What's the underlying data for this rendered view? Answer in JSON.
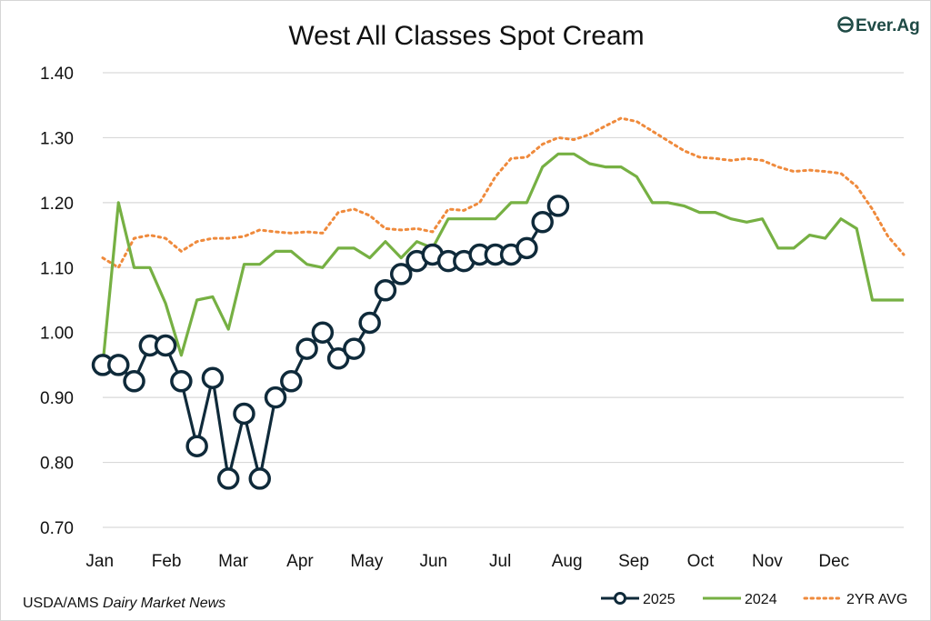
{
  "chart_data": {
    "type": "line",
    "title": "West All Classes Spot Cream",
    "ylim": [
      0.7,
      1.4
    ],
    "yticks": [
      "0.70",
      "0.80",
      "0.90",
      "1.00",
      "1.10",
      "1.20",
      "1.30",
      "1.40"
    ],
    "months": [
      "Jan",
      "Feb",
      "Mar",
      "Apr",
      "May",
      "Jun",
      "Jul",
      "Aug",
      "Sep",
      "Oct",
      "Nov",
      "Dec"
    ],
    "grid": true,
    "legend_position": "bottom-right",
    "series": [
      {
        "name": "2025",
        "color": "#0f2a3a",
        "style": "line-markers",
        "values": [
          0.95,
          0.95,
          0.925,
          0.98,
          0.98,
          0.925,
          0.825,
          0.93,
          0.775,
          0.875,
          0.775,
          0.9,
          0.925,
          0.975,
          1.0,
          0.96,
          0.975,
          1.015,
          1.065,
          1.09,
          1.11,
          1.12,
          1.11,
          1.11,
          1.12,
          1.12,
          1.12,
          1.13,
          1.17,
          1.195
        ]
      },
      {
        "name": "2024",
        "color": "#76b043",
        "style": "solid",
        "values": [
          0.95,
          1.2,
          1.1,
          1.1,
          1.045,
          0.965,
          1.05,
          1.055,
          1.005,
          1.105,
          1.105,
          1.125,
          1.125,
          1.105,
          1.1,
          1.13,
          1.13,
          1.115,
          1.14,
          1.115,
          1.14,
          1.13,
          1.175,
          1.175,
          1.175,
          1.175,
          1.2,
          1.2,
          1.255,
          1.275,
          1.275,
          1.26,
          1.255,
          1.255,
          1.24,
          1.2,
          1.2,
          1.195,
          1.185,
          1.185,
          1.175,
          1.17,
          1.175,
          1.13,
          1.13,
          1.15,
          1.145,
          1.175,
          1.16,
          1.05,
          1.05,
          1.05
        ]
      },
      {
        "name": "2YR AVG",
        "color": "#ef8a3c",
        "style": "dotted",
        "values": [
          1.115,
          1.1,
          1.145,
          1.15,
          1.145,
          1.125,
          1.14,
          1.145,
          1.145,
          1.148,
          1.158,
          1.155,
          1.153,
          1.155,
          1.153,
          1.185,
          1.19,
          1.18,
          1.16,
          1.158,
          1.16,
          1.155,
          1.19,
          1.188,
          1.2,
          1.24,
          1.268,
          1.27,
          1.29,
          1.3,
          1.297,
          1.305,
          1.318,
          1.33,
          1.325,
          1.31,
          1.295,
          1.28,
          1.27,
          1.268,
          1.265,
          1.268,
          1.265,
          1.255,
          1.248,
          1.25,
          1.248,
          1.245,
          1.225,
          1.19,
          1.148,
          1.12
        ]
      }
    ]
  },
  "source": {
    "prefix": "USDA/AMS ",
    "italic": "Dairy Market News"
  },
  "brand": {
    "name": "Ever.Ag",
    "color": "#1e4a45",
    "accent": "#5aa048"
  }
}
